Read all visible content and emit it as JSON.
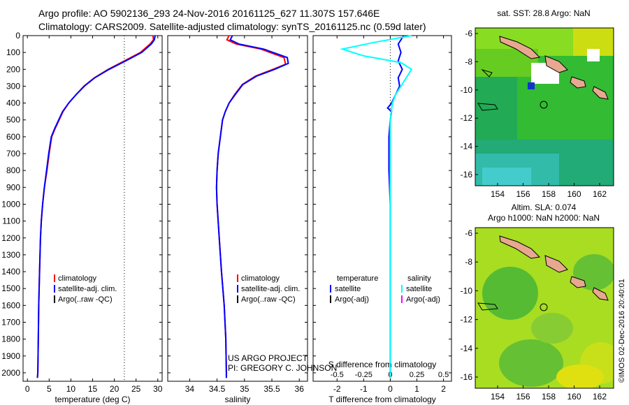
{
  "header": {
    "line1": "Argo profile: AO 5902136_293 24-Nov-2016 20161125_627 11.307S 157.646E",
    "line2": "Climatology: CARS2009. Satellite-adjusted climatology: synTS_20161125.nc (0.59d later)"
  },
  "colors": {
    "climatology": "#ff0000",
    "satellite": "#0000ff",
    "argo": "#000000",
    "sal_sat": "#00ffff",
    "sal_argo": "#ff00ff"
  },
  "chart_data": [
    {
      "type": "line",
      "xlabel": "temperature (deg C)",
      "ylim": [
        0,
        2050
      ],
      "xlim": [
        -1,
        31
      ],
      "yticks": [
        0,
        100,
        200,
        300,
        400,
        500,
        600,
        700,
        800,
        900,
        1000,
        1100,
        1200,
        1300,
        1400,
        1500,
        1600,
        1700,
        1800,
        1900,
        2000
      ],
      "xticks": [
        0,
        5,
        10,
        15,
        20,
        25,
        30
      ],
      "reference_line_x": 22.3,
      "legend": [
        "climatology",
        "satellite-adj. clim.",
        "Argo(..raw -QC)"
      ],
      "series": [
        {
          "name": "climatology",
          "x": [
            28.9,
            29.0,
            28.2,
            26.0,
            22.3,
            18.6,
            15.4,
            13.0,
            11.2,
            9.5,
            8.2,
            7.3,
            6.4,
            5.6,
            5.0,
            4.5,
            3.9,
            3.5,
            3.2,
            3.0,
            2.8,
            2.6,
            2.5,
            2.4,
            2.3
          ],
          "y": [
            0,
            25,
            50,
            100,
            150,
            200,
            250,
            300,
            350,
            400,
            450,
            500,
            550,
            600,
            700,
            800,
            900,
            1000,
            1100,
            1200,
            1400,
            1600,
            1800,
            2000,
            2030
          ]
        },
        {
          "name": "satellite-adj. clim.",
          "x": [
            29.4,
            29.2,
            28.5,
            26.3,
            22.6,
            18.8,
            15.5,
            13.1,
            11.2,
            9.5,
            8.1,
            7.2,
            6.3,
            5.5,
            4.9,
            4.4,
            3.9,
            3.5,
            3.2,
            3.0,
            2.8,
            2.6,
            2.5,
            2.4,
            2.3
          ],
          "y": [
            0,
            25,
            50,
            100,
            150,
            200,
            250,
            300,
            350,
            400,
            450,
            500,
            550,
            600,
            700,
            800,
            900,
            1000,
            1100,
            1200,
            1400,
            1600,
            1800,
            2000,
            2030
          ]
        }
      ]
    },
    {
      "type": "line",
      "xlabel": "salinity",
      "ylim": [
        0,
        2050
      ],
      "xlim": [
        33.6,
        36.15
      ],
      "xticks": [
        34,
        34.5,
        35,
        35.5,
        36
      ],
      "legend": [
        "climatology",
        "satellite-adj. clim.",
        "Argo(..raw -QC)"
      ],
      "series": [
        {
          "name": "climatology",
          "x": [
            34.72,
            34.68,
            34.85,
            35.3,
            35.72,
            35.75,
            35.52,
            35.2,
            34.96,
            34.82,
            34.72,
            34.65,
            34.6,
            34.56,
            34.52,
            34.5,
            34.49,
            34.5,
            34.54,
            34.58,
            34.63,
            34.66,
            34.67,
            34.67
          ],
          "y": [
            0,
            25,
            50,
            80,
            130,
            170,
            200,
            240,
            290,
            350,
            400,
            450,
            500,
            600,
            700,
            800,
            900,
            1000,
            1200,
            1400,
            1600,
            1800,
            2000,
            2030
          ]
        },
        {
          "name": "satellite-adj. clim.",
          "x": [
            34.78,
            34.74,
            34.9,
            35.35,
            35.78,
            35.8,
            35.55,
            35.22,
            34.97,
            34.83,
            34.72,
            34.65,
            34.6,
            34.56,
            34.52,
            34.5,
            34.49,
            34.5,
            34.54,
            34.58,
            34.63,
            34.66,
            34.67,
            34.67
          ],
          "y": [
            0,
            25,
            50,
            80,
            130,
            165,
            200,
            240,
            290,
            350,
            400,
            450,
            500,
            600,
            700,
            800,
            900,
            1000,
            1200,
            1400,
            1600,
            1800,
            2000,
            2030
          ]
        }
      ]
    },
    {
      "type": "line",
      "xlabel_top": "S difference from climatology",
      "xlabel": "T difference from climatology",
      "ylim": [
        0,
        2050
      ],
      "xlim": [
        -2.9,
        2.3
      ],
      "xticks_bottom": [
        -2,
        -1,
        0,
        1,
        2
      ],
      "xticks_top": [
        -0.5,
        -0.25,
        0,
        0.25,
        0.5
      ],
      "xtick_labels_top": [
        "-0.5",
        "-0.25",
        "0",
        "0.25",
        "0.5"
      ],
      "legend_left_title": "temperature",
      "legend_right_title": "salinity",
      "legend_left": [
        "satellite",
        "Argo(-adj)"
      ],
      "legend_right": [
        "satellite",
        "Argo(-adj)"
      ],
      "series": [
        {
          "name": "temperature satellite",
          "x": [
            0.5,
            0.3,
            0.4,
            0.3,
            0.45,
            0.3,
            0.35,
            0.2,
            0.05,
            -0.1,
            0.05,
            0.0,
            -0.05,
            -0.05,
            -0.05,
            0.0,
            0.0,
            0.0,
            0.0,
            0.0
          ],
          "y": [
            0,
            50,
            100,
            150,
            200,
            250,
            300,
            350,
            400,
            430,
            450,
            500,
            600,
            700,
            800,
            1000,
            1200,
            1500,
            1800,
            2030
          ]
        },
        {
          "name": "salinity satellite",
          "x": [
            0.2,
            -0.15,
            -0.45,
            -0.25,
            0.1,
            0.2,
            0.15,
            0.1,
            0.05,
            0.02,
            0.0,
            0.0,
            0.0,
            0.0,
            0.0
          ],
          "y": [
            0,
            40,
            80,
            120,
            160,
            200,
            250,
            300,
            350,
            400,
            500,
            700,
            1000,
            1500,
            2030
          ]
        }
      ]
    }
  ],
  "us_argo": {
    "line1": "US ARGO PROJECT",
    "line2": "PI: GREGORY C. JOHNSON"
  },
  "maps": {
    "sst": {
      "title": "sat. SST: 28.8 Argo: NaN",
      "yticks": [
        "-6",
        "-8",
        "-10",
        "-12",
        "-14",
        "-16"
      ],
      "xticks": [
        "154",
        "156",
        "158",
        "160",
        "162"
      ]
    },
    "sla": {
      "title1": "Altim. SLA: 0.074",
      "title2": "Argo h1000: NaN h2000: NaN",
      "yticks": [
        "-6",
        "-8",
        "-10",
        "-12",
        "-14",
        "-16"
      ],
      "xticks": [
        "154",
        "156",
        "158",
        "160",
        "162"
      ]
    }
  },
  "watermark": "©IMOS 02-Dec-2016 20:40:01"
}
